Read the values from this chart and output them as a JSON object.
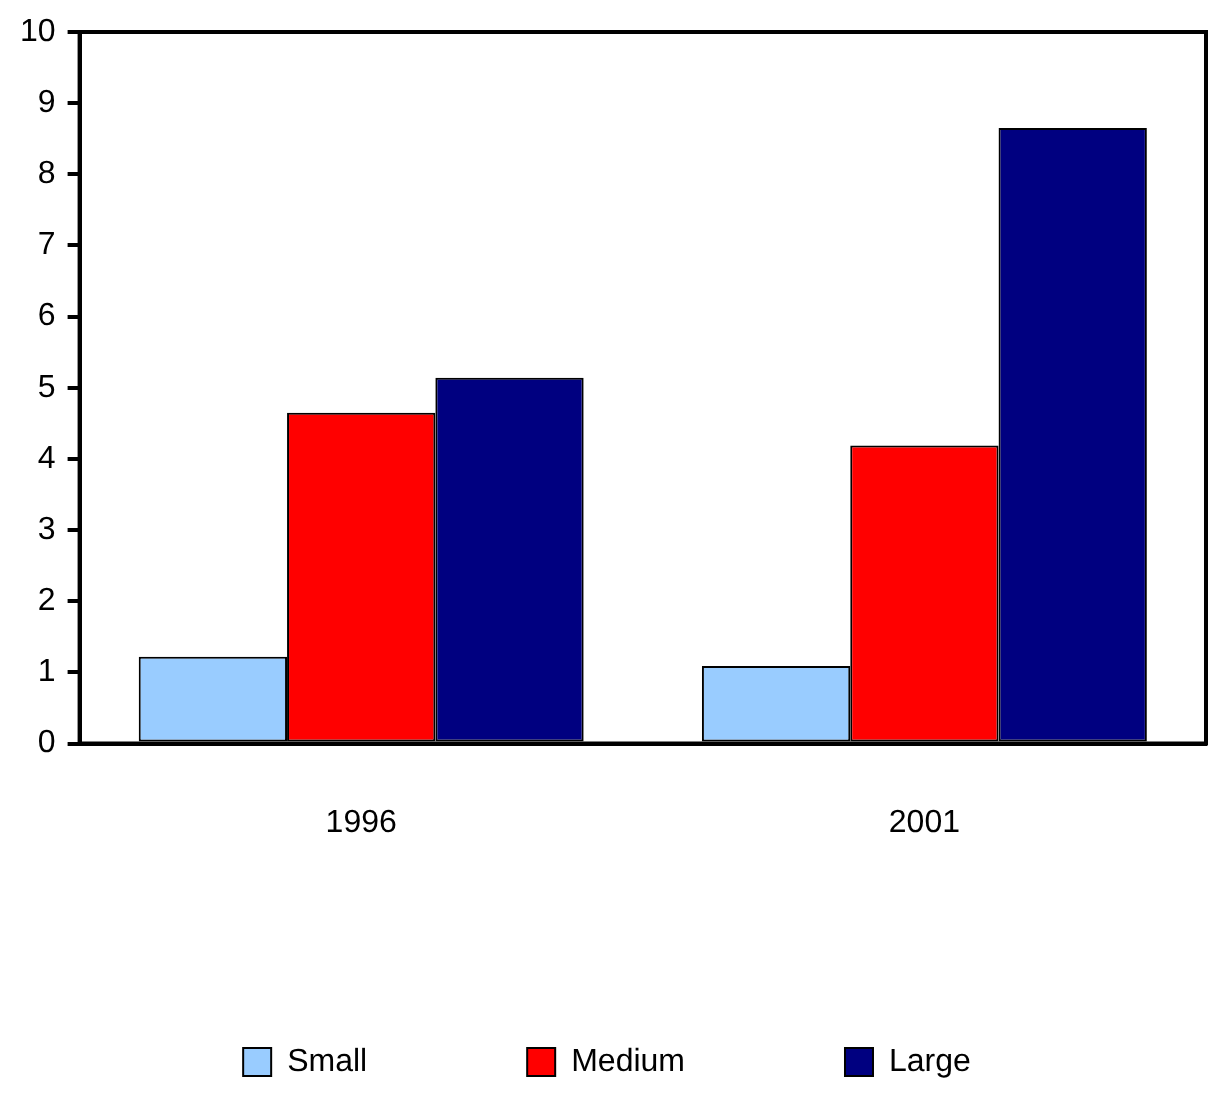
{
  "chart_data": {
    "type": "bar",
    "categories": [
      "1996",
      "2001"
    ],
    "series": [
      {
        "name": "Small",
        "color": "#99ccff",
        "values": [
          1.22,
          1.09
        ]
      },
      {
        "name": "Medium",
        "color": "#ff0000",
        "values": [
          4.65,
          4.19
        ]
      },
      {
        "name": "Large",
        "color": "#000080",
        "values": [
          5.14,
          8.65
        ]
      }
    ],
    "ylim": [
      0,
      10
    ],
    "yticks": [
      0,
      1,
      2,
      3,
      4,
      5,
      6,
      7,
      8,
      9,
      10
    ],
    "grid": false,
    "legend": "bottom"
  }
}
